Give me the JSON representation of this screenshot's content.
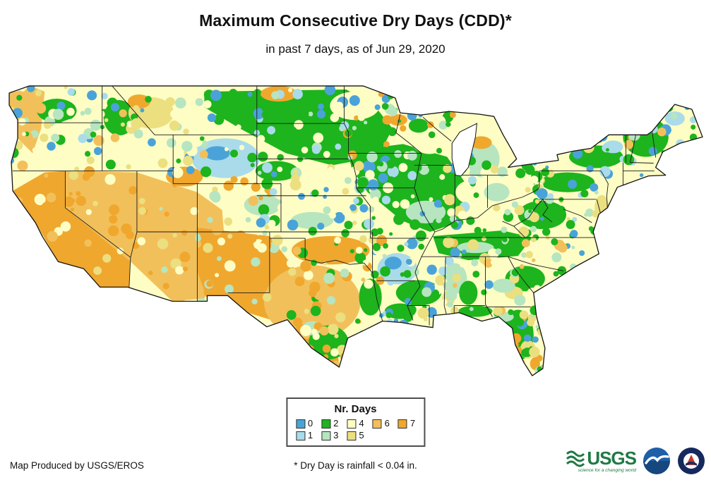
{
  "header": {
    "title": "Maximum Consecutive Dry Days (CDD)*",
    "subtitle": "in past 7 days, as of Jun 29, 2020"
  },
  "map": {
    "region": "Contiguous United States",
    "outline_color": "#141414",
    "water_color": "#ffffff"
  },
  "legend": {
    "title": "Nr. Days",
    "items": [
      {
        "label": "0",
        "color": "#4AA3D8"
      },
      {
        "label": "1",
        "color": "#A9DBEA"
      },
      {
        "label": "2",
        "color": "#1DB41D"
      },
      {
        "label": "3",
        "color": "#B6E5C0"
      },
      {
        "label": "4",
        "color": "#FEFDC4"
      },
      {
        "label": "5",
        "color": "#EBDF80"
      },
      {
        "label": "6",
        "color": "#F2C05A"
      },
      {
        "label": "7",
        "color": "#F0A72E"
      }
    ]
  },
  "footer": {
    "credit": "Map Produced by USGS/EROS",
    "note": "* Dry Day is rainfall < 0.04 in."
  },
  "logos": {
    "usgs": {
      "text": "USGS",
      "tagline": "science for a changing world",
      "color": "#1F7A44"
    },
    "noaa": {
      "name": "NOAA",
      "color": "#1E5FA8"
    },
    "nws": {
      "name": "NWS",
      "color": "#16295E",
      "accent": "#C4392F"
    }
  }
}
